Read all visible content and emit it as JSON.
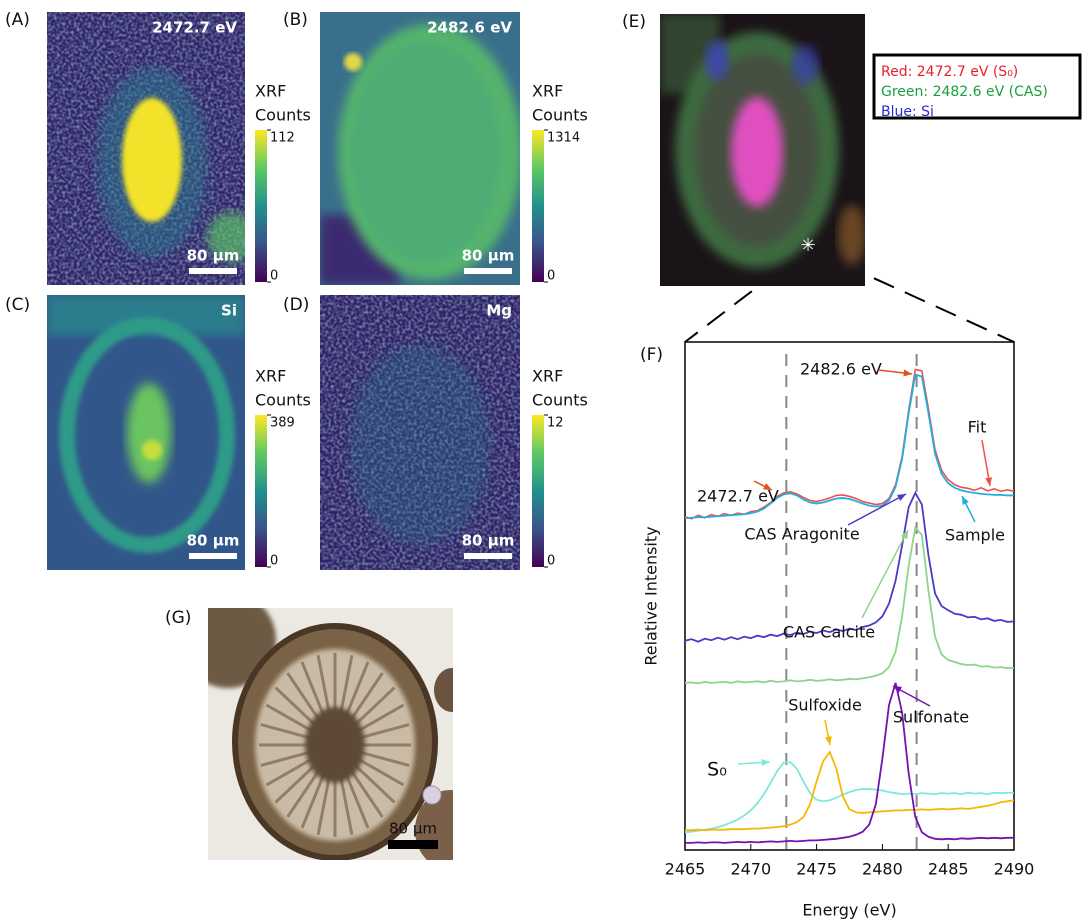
{
  "panels": [
    {
      "label": "(A)",
      "title": "2472.7 eV",
      "colorbar_label": [
        "XRF",
        "Counts"
      ],
      "colorbar_ticks": [
        0,
        112
      ],
      "scale_bar": "80 µm"
    },
    {
      "label": "(B)",
      "title": "2482.6 eV",
      "colorbar_label": [
        "XRF",
        "Counts"
      ],
      "colorbar_ticks": [
        0,
        1314
      ],
      "scale_bar": "80 µm"
    },
    {
      "label": "(C)",
      "title": "Si",
      "colorbar_label": [
        "XRF",
        "Counts"
      ],
      "colorbar_ticks": [
        0,
        389
      ],
      "scale_bar": "80 µm"
    },
    {
      "label": "(D)",
      "title": "Mg",
      "colorbar_label": [
        "XRF",
        "Counts"
      ],
      "colorbar_ticks": [
        0,
        12
      ],
      "scale_bar": "80 µm"
    }
  ],
  "panel_e": {
    "label": "(E)",
    "legend": [
      {
        "text": "Red: 2472.7 eV (S₀)",
        "color": "#e8202a"
      },
      {
        "text": "Green: 2482.6 eV (CAS)",
        "color": "#17a040"
      },
      {
        "text": "Blue: Si",
        "color": "#2a2ad0"
      }
    ]
  },
  "panel_g": {
    "label": "(G)",
    "scale_bar": "80 µm"
  },
  "chart_data": {
    "type": "line",
    "panel_label": "(F)",
    "x_label": "Energy (eV)",
    "y_label": "Relative Intensity",
    "xlim": [
      2465,
      2490
    ],
    "xticks": [
      2465,
      2470,
      2475,
      2480,
      2485,
      2490
    ],
    "ylim": [
      0,
      100
    ],
    "reference_lines": [
      2472.7,
      2482.6
    ],
    "peak_labels": [
      "2482.6 eV",
      "2472.7 eV"
    ],
    "x": [
      2465,
      2465.5,
      2466,
      2466.5,
      2467,
      2467.5,
      2468,
      2468.5,
      2469,
      2469.5,
      2470,
      2470.5,
      2471,
      2471.5,
      2472,
      2472.5,
      2473,
      2473.5,
      2474,
      2474.5,
      2475,
      2475.5,
      2476,
      2476.5,
      2477,
      2477.5,
      2478,
      2478.5,
      2479,
      2479.5,
      2480,
      2480.5,
      2481,
      2481.5,
      2482,
      2482.5,
      2483,
      2483.5,
      2484,
      2484.5,
      2485,
      2485.5,
      2486,
      2486.5,
      2487,
      2487.5,
      2488,
      2488.5,
      2489,
      2489.5,
      2490
    ],
    "series": [
      {
        "name": "Fit",
        "color": "#f0504a",
        "values": [
          65.6,
          65.2,
          65.9,
          65.4,
          66.0,
          65.7,
          66.2,
          65.9,
          66.3,
          66.1,
          66.6,
          66.8,
          67.5,
          68.4,
          69.6,
          70.3,
          70.5,
          70.1,
          69.4,
          68.8,
          68.6,
          68.9,
          69.3,
          69.8,
          69.9,
          69.6,
          69.2,
          68.6,
          68.3,
          68.0,
          68.2,
          69.2,
          71.9,
          77.5,
          86.6,
          94.6,
          94.3,
          86.8,
          78.8,
          74.7,
          72.9,
          71.9,
          71.4,
          71.2,
          70.8,
          71.3,
          70.7,
          71.1,
          70.6,
          70.9,
          70.6
        ]
      },
      {
        "name": "Sample",
        "color": "#1fb0e0",
        "values": [
          65.3,
          65.4,
          65.5,
          65.5,
          65.6,
          65.7,
          65.8,
          65.9,
          66.0,
          66.1,
          66.3,
          66.6,
          67.2,
          68.2,
          69.3,
          70.0,
          70.2,
          69.8,
          69.0,
          68.4,
          68.2,
          68.4,
          68.8,
          69.2,
          69.3,
          69.1,
          68.7,
          68.2,
          67.8,
          67.6,
          67.8,
          68.8,
          71.5,
          77.0,
          86.0,
          93.6,
          93.2,
          86.0,
          78.0,
          74.0,
          72.2,
          71.3,
          70.8,
          70.5,
          70.3,
          70.1,
          70.0,
          69.9,
          69.9,
          69.8,
          69.8
        ]
      },
      {
        "name": "CAS Aragonite",
        "color": "#4b3bc4",
        "values": [
          41.2,
          41.5,
          41.0,
          41.6,
          41.3,
          41.8,
          41.4,
          41.9,
          41.5,
          42.0,
          41.7,
          42.2,
          41.9,
          42.4,
          42.1,
          42.6,
          42.3,
          42.8,
          42.5,
          43.0,
          42.7,
          43.2,
          42.9,
          43.4,
          43.1,
          43.6,
          43.3,
          43.9,
          44.2,
          44.8,
          46.0,
          48.5,
          53.0,
          60.0,
          67.5,
          70.3,
          68.0,
          58.0,
          50.5,
          48.0,
          47.2,
          46.5,
          46.3,
          45.8,
          45.9,
          45.4,
          45.6,
          45.1,
          45.3,
          44.9,
          45.0
        ]
      },
      {
        "name": "CAS Calcite",
        "color": "#8fd48a",
        "values": [
          32.9,
          33.0,
          32.8,
          33.1,
          32.9,
          33.0,
          33.1,
          32.9,
          33.2,
          33.0,
          33.1,
          33.2,
          33.0,
          33.3,
          33.1,
          33.2,
          33.4,
          33.2,
          33.3,
          33.5,
          33.3,
          33.4,
          33.6,
          33.4,
          33.5,
          33.7,
          33.6,
          33.8,
          34.0,
          34.3,
          34.8,
          36.0,
          39.0,
          46.0,
          56.0,
          63.5,
          62.0,
          51.0,
          42.0,
          38.5,
          37.4,
          37.0,
          36.6,
          36.4,
          36.5,
          36.1,
          36.2,
          35.9,
          36.0,
          35.8,
          35.8
        ]
      },
      {
        "name": "S₀",
        "color": "#7ee8dc",
        "values": [
          3.5,
          3.6,
          3.8,
          4.0,
          4.2,
          4.5,
          4.9,
          5.4,
          6.0,
          6.8,
          7.8,
          9.2,
          11.0,
          13.2,
          15.5,
          17.2,
          17.3,
          16.0,
          13.5,
          11.2,
          9.9,
          9.6,
          9.8,
          10.3,
          10.9,
          11.4,
          11.8,
          12.0,
          12.0,
          11.9,
          11.7,
          11.4,
          11.2,
          11.0,
          11.1,
          11.0,
          11.2,
          11.1,
          11.0,
          11.2,
          11.1,
          11.2,
          11.0,
          11.3,
          11.1,
          11.2,
          11.0,
          11.3,
          11.2,
          11.3,
          11.2
        ]
      },
      {
        "name": "Sulfoxide",
        "color": "#f5b800",
        "values": [
          3.9,
          3.9,
          4.0,
          3.9,
          4.0,
          4.0,
          4.0,
          4.1,
          4.1,
          4.1,
          4.2,
          4.2,
          4.3,
          4.4,
          4.5,
          4.7,
          5.0,
          5.5,
          6.5,
          9.0,
          13.5,
          17.5,
          19.3,
          16.0,
          10.5,
          8.0,
          7.4,
          7.3,
          7.4,
          7.5,
          7.6,
          7.7,
          7.8,
          7.8,
          7.9,
          7.9,
          8.0,
          7.9,
          8.0,
          8.1,
          8.0,
          8.1,
          8.2,
          8.1,
          8.3,
          8.5,
          8.7,
          9.0,
          9.4,
          9.6,
          9.8
        ]
      },
      {
        "name": "Sulfonate",
        "color": "#7412b0",
        "values": [
          1.4,
          1.4,
          1.5,
          1.4,
          1.5,
          1.5,
          1.4,
          1.5,
          1.6,
          1.5,
          1.6,
          1.5,
          1.6,
          1.7,
          1.6,
          1.7,
          1.8,
          1.7,
          1.8,
          1.9,
          1.9,
          2.0,
          2.1,
          2.2,
          2.4,
          2.6,
          3.0,
          3.6,
          5.0,
          9.0,
          18.0,
          28.5,
          32.9,
          27.0,
          15.0,
          6.5,
          3.5,
          2.6,
          2.2,
          2.1,
          2.2,
          2.1,
          2.3,
          2.2,
          2.3,
          2.4,
          2.3,
          2.4,
          2.3,
          2.4,
          2.4
        ]
      }
    ]
  }
}
